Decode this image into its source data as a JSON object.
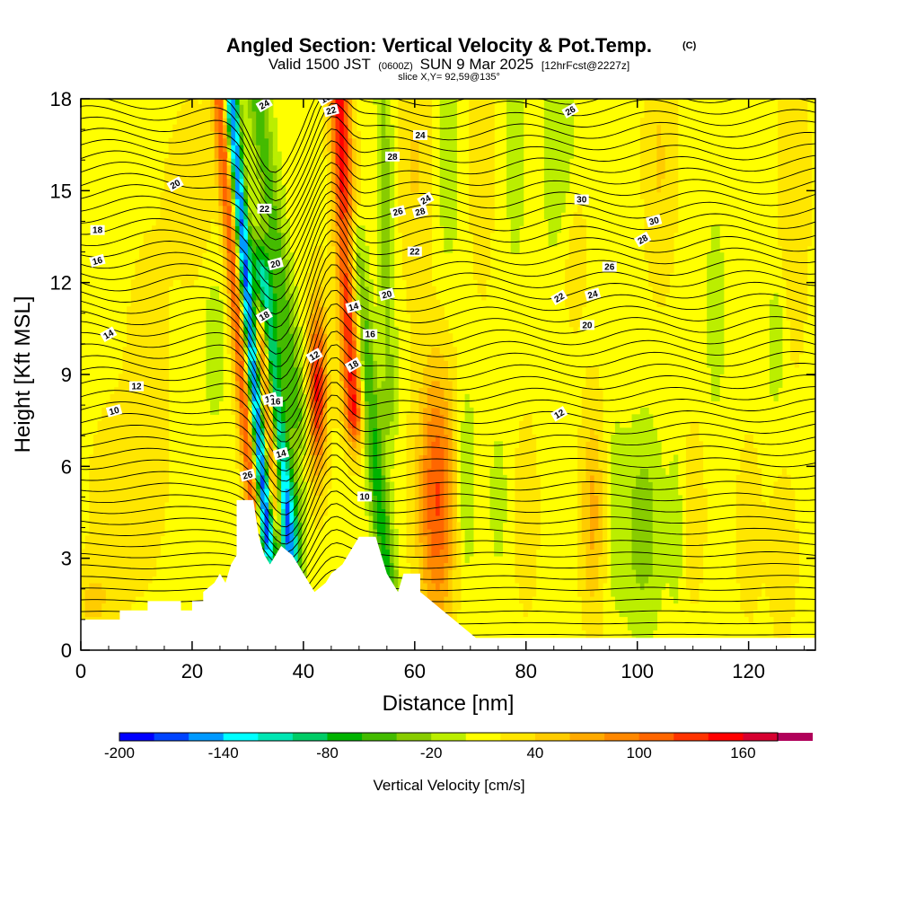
{
  "chart_data": {
    "type": "heatmap",
    "title": "Angled Section: Vertical Velocity & Pot.Temp.",
    "title_mark": "(C)",
    "subtitle_parts": [
      "Valid 1500 JST",
      "(0600Z)",
      "SUN 9 Mar 2025",
      "[12hrFcst@2227z]"
    ],
    "slice_info": "slice X,Y= 92,59@135°",
    "xlabel": "Distance [nm]",
    "ylabel": "Height [Kft MSL]",
    "xlim": [
      0,
      132
    ],
    "ylim": [
      0,
      18
    ],
    "x_ticks": [
      "0",
      "20",
      "40",
      "60",
      "80",
      "100",
      "120"
    ],
    "y_ticks": [
      "0",
      "3",
      "6",
      "9",
      "12",
      "15",
      "18"
    ],
    "colorbar": {
      "title": "Vertical Velocity [cm/s]",
      "range": [
        -200,
        180
      ],
      "step": 20,
      "ticks": [
        "-200",
        "-140",
        "-80",
        "-20",
        "40",
        "100",
        "160"
      ],
      "colors": [
        "#0000ff",
        "#0044ff",
        "#0099ff",
        "#00ffff",
        "#00e6b3",
        "#00cc66",
        "#00b300",
        "#44bb00",
        "#88cc00",
        "#bbee00",
        "#ffff00",
        "#ffe600",
        "#ffcc00",
        "#ffaa00",
        "#ff8800",
        "#ff6600",
        "#ff3300",
        "#ff0000",
        "#d60030",
        "#b0005a",
        "#800080"
      ]
    },
    "contour_labels": [
      "10",
      "12",
      "14",
      "16",
      "18",
      "20",
      "22",
      "24",
      "26",
      "28",
      "30",
      "12",
      "14",
      "16",
      "18",
      "20",
      "22",
      "24",
      "26",
      "28",
      "10",
      "10",
      "10",
      "12",
      "14",
      "16",
      "18",
      "20",
      "22",
      "24",
      "26",
      "20",
      "22",
      "24",
      "26",
      "28",
      "30"
    ]
  }
}
